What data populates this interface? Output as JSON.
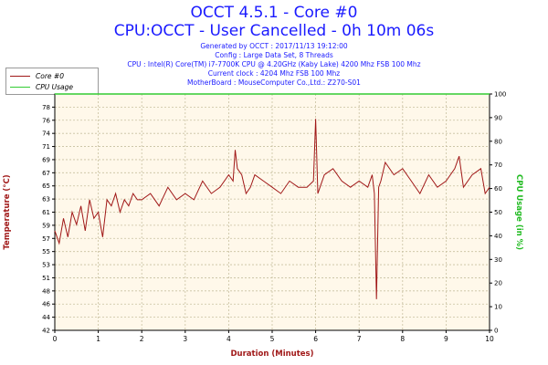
{
  "header": {
    "title1": "OCCT 4.5.1 - Core #0",
    "title2": "CPU:OCCT - User Cancelled - 0h 10m 06s",
    "info": [
      "Generated by OCCT : 2017/11/13 19:12:00",
      "Config : Large Data Set, 8 Threads",
      "CPU : Intel(R) Core(TM) i7-7700K CPU @ 4.20GHz (Kaby Lake) 4200 Mhz FSB 100 Mhz",
      "Current clock : 4204 Mhz FSB 100 Mhz",
      "MotherBoard : MouseComputer Co.,Ltd.: Z270-S01"
    ]
  },
  "colors": {
    "core": "#a01818",
    "usage": "#33cc33",
    "title": "#1a1aff",
    "ylabel": "#a01818",
    "y2label": "#22bb22",
    "xlabel": "#a01818",
    "plot_bg": "#fff8ea",
    "grid": "#c8c0a0"
  },
  "chart_data": {
    "type": "line",
    "xlabel": "Duration (Minutes)",
    "ylabel": "Temperature (°C)",
    "y2label": "CPU Usage (in %)",
    "xlim": [
      0,
      10
    ],
    "ylim": [
      42,
      80
    ],
    "y2lim": [
      0,
      100
    ],
    "x_ticks": [
      "0",
      "1",
      "2",
      "3",
      "4",
      "5",
      "6",
      "7",
      "8",
      "9",
      "10"
    ],
    "y_ticks": [
      "42",
      "44",
      "46",
      "48",
      "51",
      "53",
      "55",
      "57",
      "59",
      "61",
      "63",
      "65",
      "67",
      "69",
      "71",
      "74",
      "76",
      "78"
    ],
    "y2_ticks": [
      "0",
      "10",
      "20",
      "30",
      "40",
      "50",
      "60",
      "70",
      "80",
      "90",
      "100"
    ],
    "legend": [
      "Core #0",
      "CPU Usage"
    ],
    "legend_position": "top-left",
    "grid": true,
    "series": [
      {
        "name": "Core #0",
        "x": [
          0,
          0.1,
          0.2,
          0.3,
          0.4,
          0.5,
          0.6,
          0.7,
          0.8,
          0.9,
          1.0,
          1.1,
          1.2,
          1.3,
          1.4,
          1.5,
          1.6,
          1.7,
          1.8,
          1.9,
          2.0,
          2.2,
          2.4,
          2.6,
          2.8,
          3.0,
          3.2,
          3.4,
          3.6,
          3.8,
          4.0,
          4.1,
          4.15,
          4.2,
          4.3,
          4.4,
          4.5,
          4.6,
          4.8,
          5.0,
          5.2,
          5.4,
          5.6,
          5.8,
          5.95,
          6.0,
          6.05,
          6.2,
          6.4,
          6.6,
          6.8,
          7.0,
          7.2,
          7.3,
          7.35,
          7.4,
          7.45,
          7.5,
          7.6,
          7.8,
          8.0,
          8.2,
          8.4,
          8.6,
          8.8,
          9.0,
          9.2,
          9.3,
          9.4,
          9.6,
          9.8,
          9.9,
          10.0
        ],
        "values": [
          58,
          56,
          60,
          57,
          61,
          59,
          62,
          58,
          63,
          60,
          61,
          57,
          63,
          62,
          64,
          61,
          63,
          62,
          64,
          63,
          63,
          64,
          62,
          65,
          63,
          64,
          63,
          66,
          64,
          65,
          67,
          66,
          71,
          68,
          67,
          64,
          65,
          67,
          66,
          65,
          64,
          66,
          65,
          65,
          66,
          76,
          64,
          67,
          68,
          66,
          65,
          66,
          65,
          67,
          64,
          47,
          65,
          66,
          69,
          67,
          68,
          66,
          64,
          67,
          65,
          66,
          68,
          70,
          65,
          67,
          68,
          64,
          65
        ]
      },
      {
        "name": "CPU Usage",
        "x": [
          0,
          10
        ],
        "values": [
          100,
          100
        ]
      }
    ]
  }
}
